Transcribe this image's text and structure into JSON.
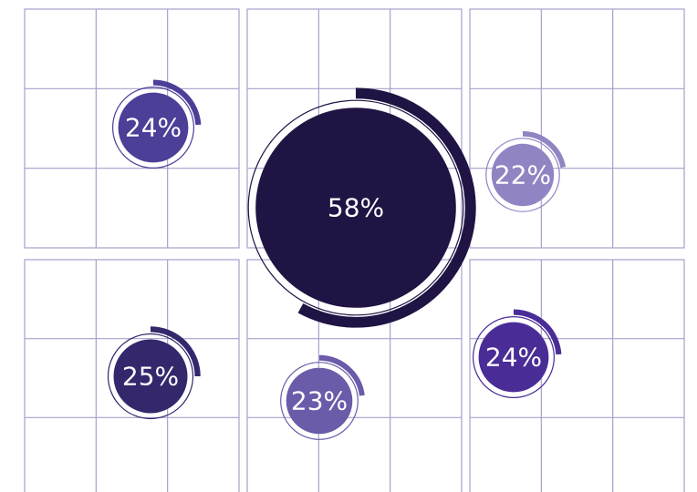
{
  "chart_data": {
    "type": "radial-progress",
    "values": [
      24,
      58,
      22,
      25,
      23,
      24
    ],
    "value_labels": [
      "24%",
      "58%",
      "22%",
      "25%",
      "23%",
      "24%"
    ],
    "colors": [
      "#4b3f98",
      "#1f1443",
      "#9283c2",
      "#34276c",
      "#6b5ba9",
      "#4a2c97"
    ]
  }
}
